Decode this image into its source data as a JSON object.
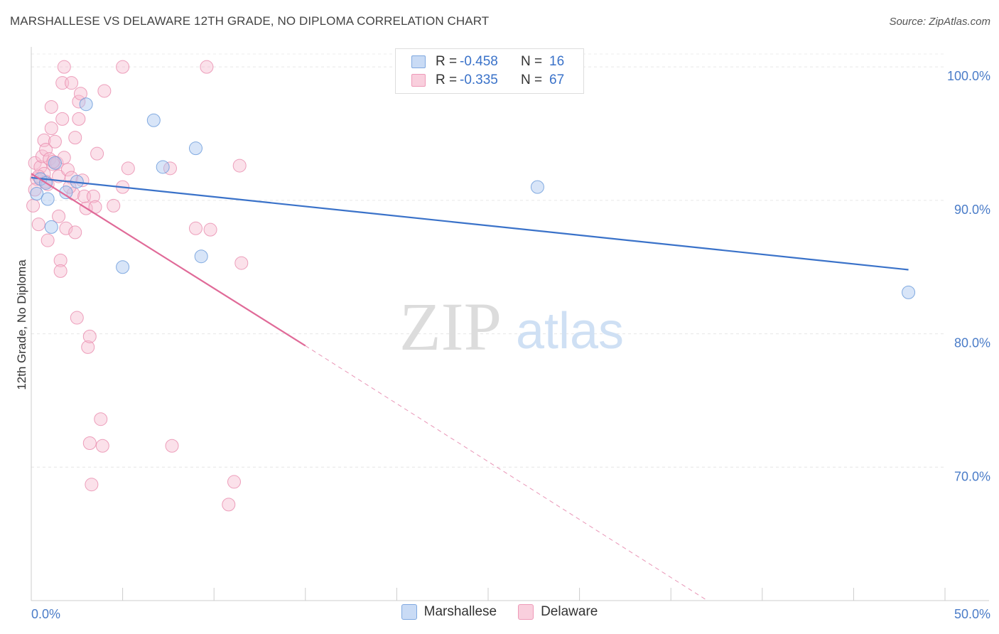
{
  "header": {
    "title": "MARSHALLESE VS DELAWARE 12TH GRADE, NO DIPLOMA CORRELATION CHART",
    "source": "Source: ZipAtlas.com"
  },
  "watermark": {
    "zip": "ZIP",
    "atlas": "atlas"
  },
  "legend_top": {
    "rows": [
      {
        "r_label": "R = ",
        "r_value": "-0.458",
        "n_label": "N = ",
        "n_value": "16",
        "color": "#a9c6ef"
      },
      {
        "r_label": "R = ",
        "r_value": "-0.335",
        "n_label": "N = ",
        "n_value": "67",
        "color": "#f4aec6"
      }
    ]
  },
  "legend_bottom": {
    "items": [
      {
        "label": "Marshallese",
        "color": "#a9c6ef"
      },
      {
        "label": "Delaware",
        "color": "#f4aec6"
      }
    ]
  },
  "chart_data": {
    "type": "scatter",
    "title": "MARSHALLESE VS DELAWARE 12TH GRADE, NO DIPLOMA CORRELATION CHART",
    "xlabel": "",
    "ylabel": "12th Grade, No Diploma",
    "xlim": [
      0,
      50
    ],
    "ylim": [
      60,
      101.5
    ],
    "x_tick_labels": [
      "0.0%",
      "50.0%"
    ],
    "y_ticks": [
      70,
      80,
      90,
      100
    ],
    "y_tick_labels": [
      "70.0%",
      "80.0%",
      "90.0%",
      "100.0%"
    ],
    "grid": true,
    "legend_position": "top-center",
    "colors": {
      "marshallese": "#3a72c9",
      "delaware": "#e06a98",
      "tick_label": "#4a7cc8"
    },
    "series": [
      {
        "name": "Marshallese",
        "r": -0.458,
        "n": 16,
        "trend": {
          "x0": 0,
          "y0": 91.7,
          "x1": 48,
          "y1": 84.8
        },
        "points": [
          [
            0.3,
            90.5
          ],
          [
            0.5,
            91.6
          ],
          [
            0.8,
            91.3
          ],
          [
            0.9,
            90.1
          ],
          [
            1.1,
            88.0
          ],
          [
            1.3,
            92.8
          ],
          [
            1.9,
            90.6
          ],
          [
            2.5,
            91.4
          ],
          [
            3.0,
            97.2
          ],
          [
            5.0,
            85.0
          ],
          [
            6.7,
            96.0
          ],
          [
            7.2,
            92.5
          ],
          [
            9.0,
            93.9
          ],
          [
            9.3,
            85.8
          ],
          [
            27.7,
            91.0
          ],
          [
            48.0,
            83.1
          ]
        ]
      },
      {
        "name": "Delaware",
        "r": -0.335,
        "n": 67,
        "trend": {
          "x0": 0,
          "y0": 92.0,
          "x1": 15,
          "y1": 79.1,
          "dashed_to_x": 37,
          "dashed_to_y": 60
        },
        "points": [
          [
            0.1,
            89.6
          ],
          [
            0.2,
            92.8
          ],
          [
            0.3,
            91.6
          ],
          [
            0.4,
            88.2
          ],
          [
            0.5,
            92.5
          ],
          [
            0.6,
            93.3
          ],
          [
            0.7,
            92.0
          ],
          [
            0.7,
            94.5
          ],
          [
            0.8,
            91.4
          ],
          [
            0.8,
            93.8
          ],
          [
            0.9,
            87.0
          ],
          [
            0.9,
            91.2
          ],
          [
            1.0,
            93.1
          ],
          [
            1.1,
            95.4
          ],
          [
            1.1,
            97.0
          ],
          [
            1.2,
            92.7
          ],
          [
            1.3,
            94.4
          ],
          [
            1.4,
            92.8
          ],
          [
            1.5,
            91.8
          ],
          [
            1.5,
            88.8
          ],
          [
            1.6,
            85.5
          ],
          [
            1.6,
            84.7
          ],
          [
            1.7,
            96.1
          ],
          [
            1.7,
            98.8
          ],
          [
            1.8,
            93.2
          ],
          [
            1.8,
            100.0
          ],
          [
            1.9,
            87.9
          ],
          [
            2.0,
            92.3
          ],
          [
            2.2,
            98.8
          ],
          [
            2.2,
            91.7
          ],
          [
            2.3,
            90.5
          ],
          [
            2.4,
            87.6
          ],
          [
            2.4,
            94.7
          ],
          [
            2.5,
            81.2
          ],
          [
            2.6,
            96.1
          ],
          [
            2.6,
            97.4
          ],
          [
            2.7,
            98.0
          ],
          [
            2.8,
            91.5
          ],
          [
            2.9,
            90.3
          ],
          [
            3.0,
            89.4
          ],
          [
            3.1,
            79.0
          ],
          [
            3.2,
            79.8
          ],
          [
            3.2,
            71.8
          ],
          [
            3.3,
            68.7
          ],
          [
            3.4,
            90.3
          ],
          [
            3.5,
            89.5
          ],
          [
            3.6,
            93.5
          ],
          [
            3.8,
            73.6
          ],
          [
            3.9,
            71.6
          ],
          [
            4.0,
            98.2
          ],
          [
            4.5,
            89.6
          ],
          [
            5.0,
            91.0
          ],
          [
            5.0,
            100.0
          ],
          [
            5.3,
            92.4
          ],
          [
            7.6,
            92.4
          ],
          [
            7.7,
            71.6
          ],
          [
            9.0,
            87.9
          ],
          [
            9.6,
            100.0
          ],
          [
            9.8,
            87.8
          ],
          [
            10.8,
            67.2
          ],
          [
            11.1,
            68.9
          ],
          [
            11.4,
            92.6
          ],
          [
            11.5,
            85.3
          ],
          [
            0.2,
            90.8
          ],
          [
            1.2,
            92.9
          ],
          [
            2.1,
            91.0
          ],
          [
            0.4,
            91.8
          ]
        ]
      }
    ]
  }
}
